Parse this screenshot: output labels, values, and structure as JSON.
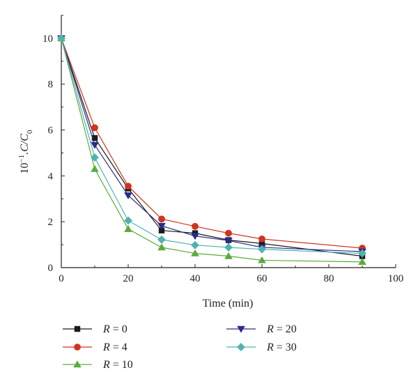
{
  "chart_data": {
    "type": "line",
    "title": "",
    "xlabel": "Time (min)",
    "ylabel_main": "10",
    "ylabel_exp": "−1",
    "ylabel_rest": ".C/C",
    "ylabel_sub": "0",
    "xlim": [
      0,
      100
    ],
    "ylim": [
      0,
      11
    ],
    "x_ticks": [
      "0",
      "20",
      "40",
      "60",
      "80",
      "100"
    ],
    "y_ticks": [
      "0",
      "2",
      "4",
      "6",
      "8",
      "10"
    ],
    "x": [
      0,
      10,
      20,
      30,
      40,
      50,
      60,
      90
    ],
    "legend_prefix": "R",
    "legend_eq": "=",
    "legend_position": "bottom",
    "series": [
      {
        "name": "0",
        "color": "#1a1a1a",
        "marker": "square",
        "values": [
          10,
          5.65,
          3.45,
          1.62,
          1.5,
          1.2,
          1.05,
          0.5
        ]
      },
      {
        "name": "4",
        "color": "#d0341e",
        "marker": "circle",
        "values": [
          10,
          6.1,
          3.55,
          2.12,
          1.8,
          1.5,
          1.25,
          0.85
        ]
      },
      {
        "name": "10",
        "color": "#5aab3a",
        "marker": "triangle-up",
        "values": [
          10,
          4.3,
          1.68,
          0.88,
          0.62,
          0.5,
          0.32,
          0.25
        ]
      },
      {
        "name": "20",
        "color": "#2c2a8c",
        "marker": "triangle-down",
        "values": [
          10,
          5.35,
          3.15,
          1.82,
          1.38,
          1.18,
          0.88,
          0.7
        ]
      },
      {
        "name": "30",
        "color": "#4fb3b0",
        "marker": "diamond",
        "values": [
          10,
          4.8,
          2.05,
          1.22,
          0.98,
          0.88,
          0.8,
          0.62
        ]
      }
    ]
  }
}
